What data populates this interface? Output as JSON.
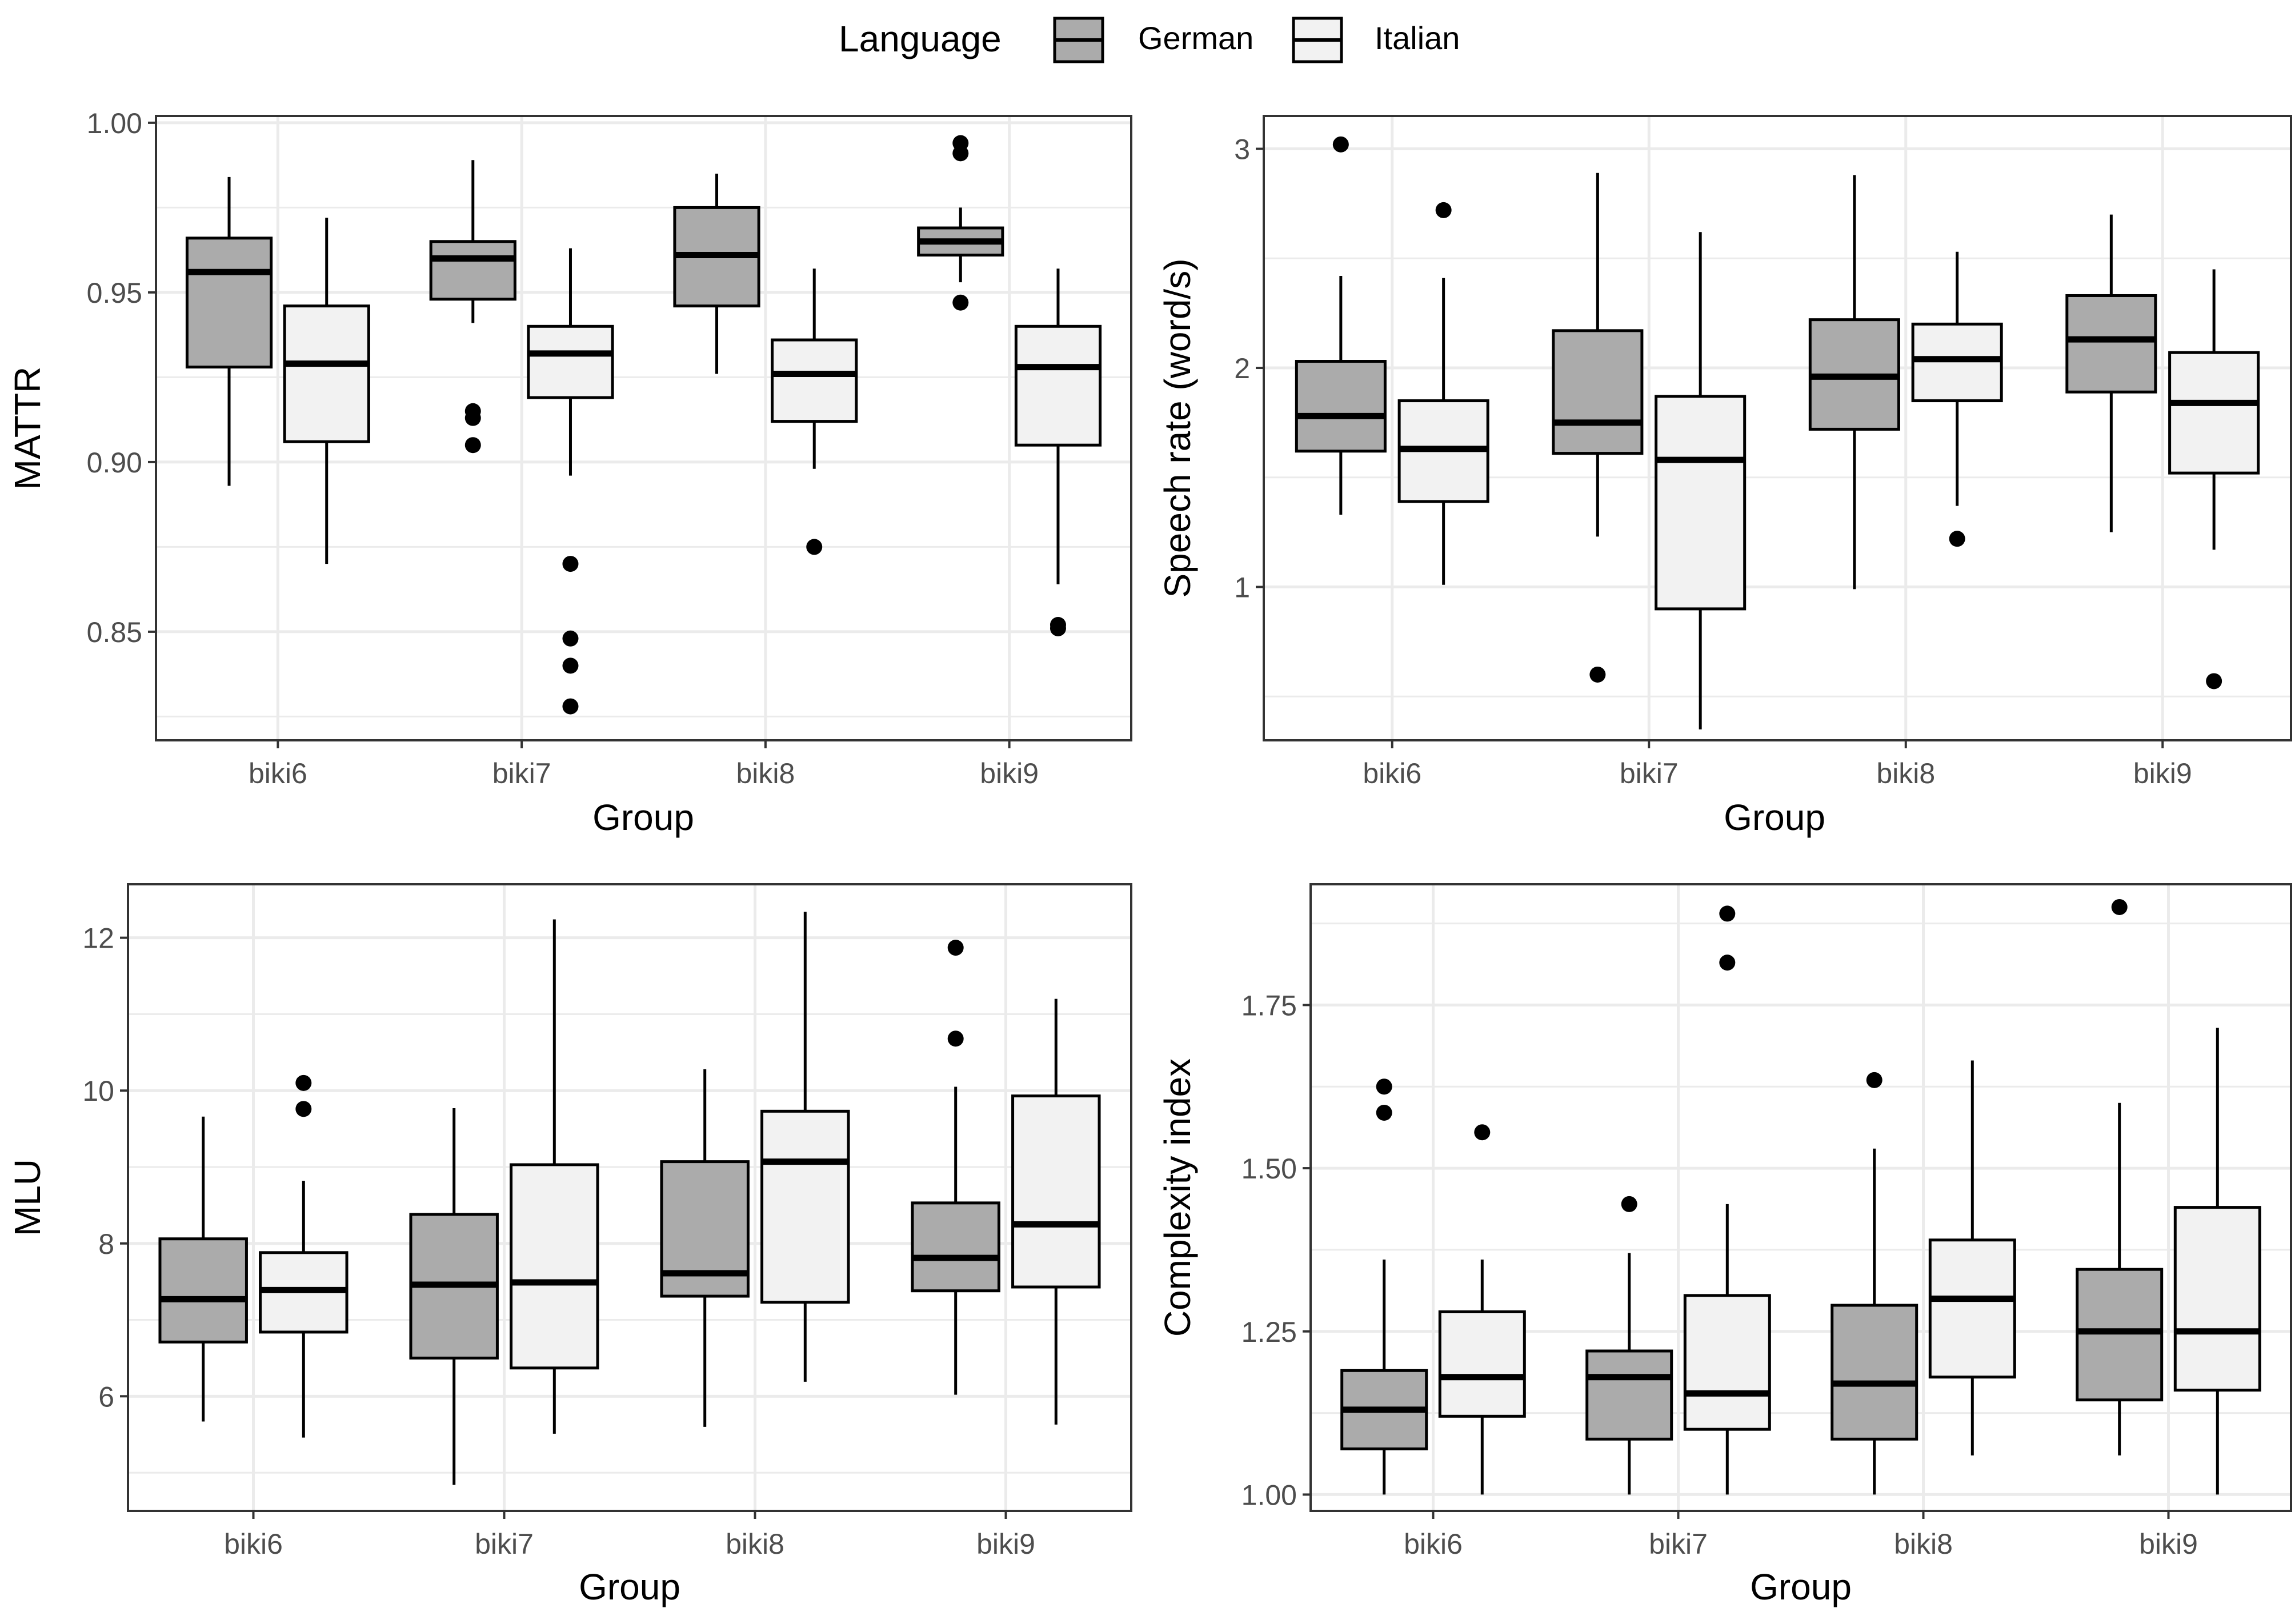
{
  "legend": {
    "title": "Language",
    "items": [
      {
        "label": "German",
        "fill": "#ababab"
      },
      {
        "label": "Italian",
        "fill": "#f2f2f2"
      }
    ]
  },
  "colors": {
    "german": "#ababab",
    "italian": "#f2f2f2",
    "grid": "#ebebeb",
    "border": "#333333",
    "ink": "#000000",
    "tick_text": "#4d4d4d"
  },
  "chart_data": [
    {
      "type": "boxplot",
      "title": "",
      "xlabel": "Group",
      "ylabel": "MATTR",
      "categories": [
        "biki6",
        "biki7",
        "biki8",
        "biki9"
      ],
      "ylim": [
        0.818,
        1.002
      ],
      "yticks": [
        0.85,
        0.9,
        0.95,
        1.0
      ],
      "ytick_labels": [
        "0.85",
        "0.90",
        "0.95",
        "1.00"
      ],
      "series": [
        {
          "name": "German",
          "boxes": [
            {
              "min": 0.893,
              "q1": 0.928,
              "median": 0.956,
              "q3": 0.966,
              "max": 0.984,
              "outliers": []
            },
            {
              "min": 0.941,
              "q1": 0.948,
              "median": 0.96,
              "q3": 0.965,
              "max": 0.989,
              "outliers": [
                0.915,
                0.913,
                0.905
              ]
            },
            {
              "min": 0.926,
              "q1": 0.946,
              "median": 0.961,
              "q3": 0.975,
              "max": 0.985,
              "outliers": []
            },
            {
              "min": 0.953,
              "q1": 0.961,
              "median": 0.965,
              "q3": 0.969,
              "max": 0.975,
              "outliers": [
                0.994,
                0.991,
                0.947
              ]
            }
          ]
        },
        {
          "name": "Italian",
          "boxes": [
            {
              "min": 0.87,
              "q1": 0.906,
              "median": 0.929,
              "q3": 0.946,
              "max": 0.972,
              "outliers": []
            },
            {
              "min": 0.896,
              "q1": 0.919,
              "median": 0.932,
              "q3": 0.94,
              "max": 0.963,
              "outliers": [
                0.87,
                0.848,
                0.84,
                0.828
              ]
            },
            {
              "min": 0.898,
              "q1": 0.912,
              "median": 0.926,
              "q3": 0.936,
              "max": 0.957,
              "outliers": [
                0.875
              ]
            },
            {
              "min": 0.864,
              "q1": 0.905,
              "median": 0.928,
              "q3": 0.94,
              "max": 0.957,
              "outliers": [
                0.852,
                0.851
              ]
            }
          ]
        }
      ]
    },
    {
      "type": "boxplot",
      "title": "",
      "xlabel": "Group",
      "ylabel": "Speech rate (word/s)",
      "categories": [
        "biki6",
        "biki7",
        "biki8",
        "biki9"
      ],
      "ylim": [
        0.3,
        3.15
      ],
      "yticks": [
        1,
        2,
        3
      ],
      "ytick_labels": [
        "1",
        "2",
        "3"
      ],
      "series": [
        {
          "name": "German",
          "boxes": [
            {
              "min": 1.33,
              "q1": 1.62,
              "median": 1.78,
              "q3": 2.03,
              "max": 2.42,
              "outliers": [
                3.02
              ]
            },
            {
              "min": 1.23,
              "q1": 1.61,
              "median": 1.75,
              "q3": 2.17,
              "max": 2.89,
              "outliers": [
                0.6
              ]
            },
            {
              "min": 0.99,
              "q1": 1.72,
              "median": 1.96,
              "q3": 2.22,
              "max": 2.88,
              "outliers": []
            },
            {
              "min": 1.25,
              "q1": 1.89,
              "median": 2.13,
              "q3": 2.33,
              "max": 2.7,
              "outliers": []
            }
          ]
        },
        {
          "name": "Italian",
          "boxes": [
            {
              "min": 1.01,
              "q1": 1.39,
              "median": 1.63,
              "q3": 1.85,
              "max": 2.41,
              "outliers": [
                2.72
              ]
            },
            {
              "min": 0.35,
              "q1": 0.9,
              "median": 1.58,
              "q3": 1.87,
              "max": 2.62,
              "outliers": []
            },
            {
              "min": 1.37,
              "q1": 1.85,
              "median": 2.04,
              "q3": 2.2,
              "max": 2.53,
              "outliers": [
                1.22
              ]
            },
            {
              "min": 1.17,
              "q1": 1.52,
              "median": 1.84,
              "q3": 2.07,
              "max": 2.45,
              "outliers": [
                0.57
              ]
            }
          ]
        }
      ]
    },
    {
      "type": "boxplot",
      "title": "",
      "xlabel": "Group",
      "ylabel": "MLU",
      "categories": [
        "biki6",
        "biki7",
        "biki8",
        "biki9"
      ],
      "ylim": [
        4.5,
        12.7
      ],
      "yticks": [
        6,
        8,
        10,
        12
      ],
      "ytick_labels": [
        "6",
        "8",
        "10",
        "12"
      ],
      "series": [
        {
          "name": "German",
          "boxes": [
            {
              "min": 5.67,
              "q1": 6.71,
              "median": 7.27,
              "q3": 8.06,
              "max": 9.66,
              "outliers": []
            },
            {
              "min": 4.84,
              "q1": 6.5,
              "median": 7.46,
              "q3": 8.38,
              "max": 9.77,
              "outliers": []
            },
            {
              "min": 5.6,
              "q1": 7.31,
              "median": 7.61,
              "q3": 9.07,
              "max": 10.28,
              "outliers": []
            },
            {
              "min": 6.02,
              "q1": 7.38,
              "median": 7.81,
              "q3": 8.53,
              "max": 10.05,
              "outliers": [
                11.87,
                10.68
              ]
            }
          ]
        },
        {
          "name": "Italian",
          "boxes": [
            {
              "min": 5.46,
              "q1": 6.84,
              "median": 7.39,
              "q3": 7.88,
              "max": 8.82,
              "outliers": [
                10.1,
                9.76
              ]
            },
            {
              "min": 5.51,
              "q1": 6.37,
              "median": 7.49,
              "q3": 9.03,
              "max": 12.24,
              "outliers": []
            },
            {
              "min": 6.19,
              "q1": 7.23,
              "median": 9.07,
              "q3": 9.73,
              "max": 12.34,
              "outliers": []
            },
            {
              "min": 5.63,
              "q1": 7.43,
              "median": 8.25,
              "q3": 9.93,
              "max": 11.2,
              "outliers": []
            }
          ]
        }
      ]
    },
    {
      "type": "boxplot",
      "title": "",
      "xlabel": "Group",
      "ylabel": "Complexity index",
      "categories": [
        "biki6",
        "biki7",
        "biki8",
        "biki9"
      ],
      "ylim": [
        0.975,
        1.935
      ],
      "yticks": [
        1.0,
        1.25,
        1.5,
        1.75
      ],
      "ytick_labels": [
        "1.00",
        "1.25",
        "1.50",
        "1.75"
      ],
      "series": [
        {
          "name": "German",
          "boxes": [
            {
              "min": 1.0,
              "q1": 1.07,
              "median": 1.13,
              "q3": 1.19,
              "max": 1.36,
              "outliers": [
                1.625,
                1.585
              ]
            },
            {
              "min": 1.0,
              "q1": 1.085,
              "median": 1.18,
              "q3": 1.22,
              "max": 1.37,
              "outliers": [
                1.445
              ]
            },
            {
              "min": 1.0,
              "q1": 1.085,
              "median": 1.17,
              "q3": 1.29,
              "max": 1.53,
              "outliers": [
                1.635
              ]
            },
            {
              "min": 1.06,
              "q1": 1.145,
              "median": 1.25,
              "q3": 1.345,
              "max": 1.6,
              "outliers": [
                1.9
              ]
            }
          ]
        },
        {
          "name": "Italian",
          "boxes": [
            {
              "min": 1.0,
              "q1": 1.12,
              "median": 1.18,
              "q3": 1.28,
              "max": 1.36,
              "outliers": [
                1.555
              ]
            },
            {
              "min": 1.0,
              "q1": 1.1,
              "median": 1.155,
              "q3": 1.305,
              "max": 1.445,
              "outliers": [
                1.89,
                1.815
              ]
            },
            {
              "min": 1.06,
              "q1": 1.18,
              "median": 1.3,
              "q3": 1.39,
              "max": 1.665,
              "outliers": []
            },
            {
              "min": 1.0,
              "q1": 1.16,
              "median": 1.25,
              "q3": 1.44,
              "max": 1.715,
              "outliers": []
            }
          ]
        }
      ]
    }
  ]
}
